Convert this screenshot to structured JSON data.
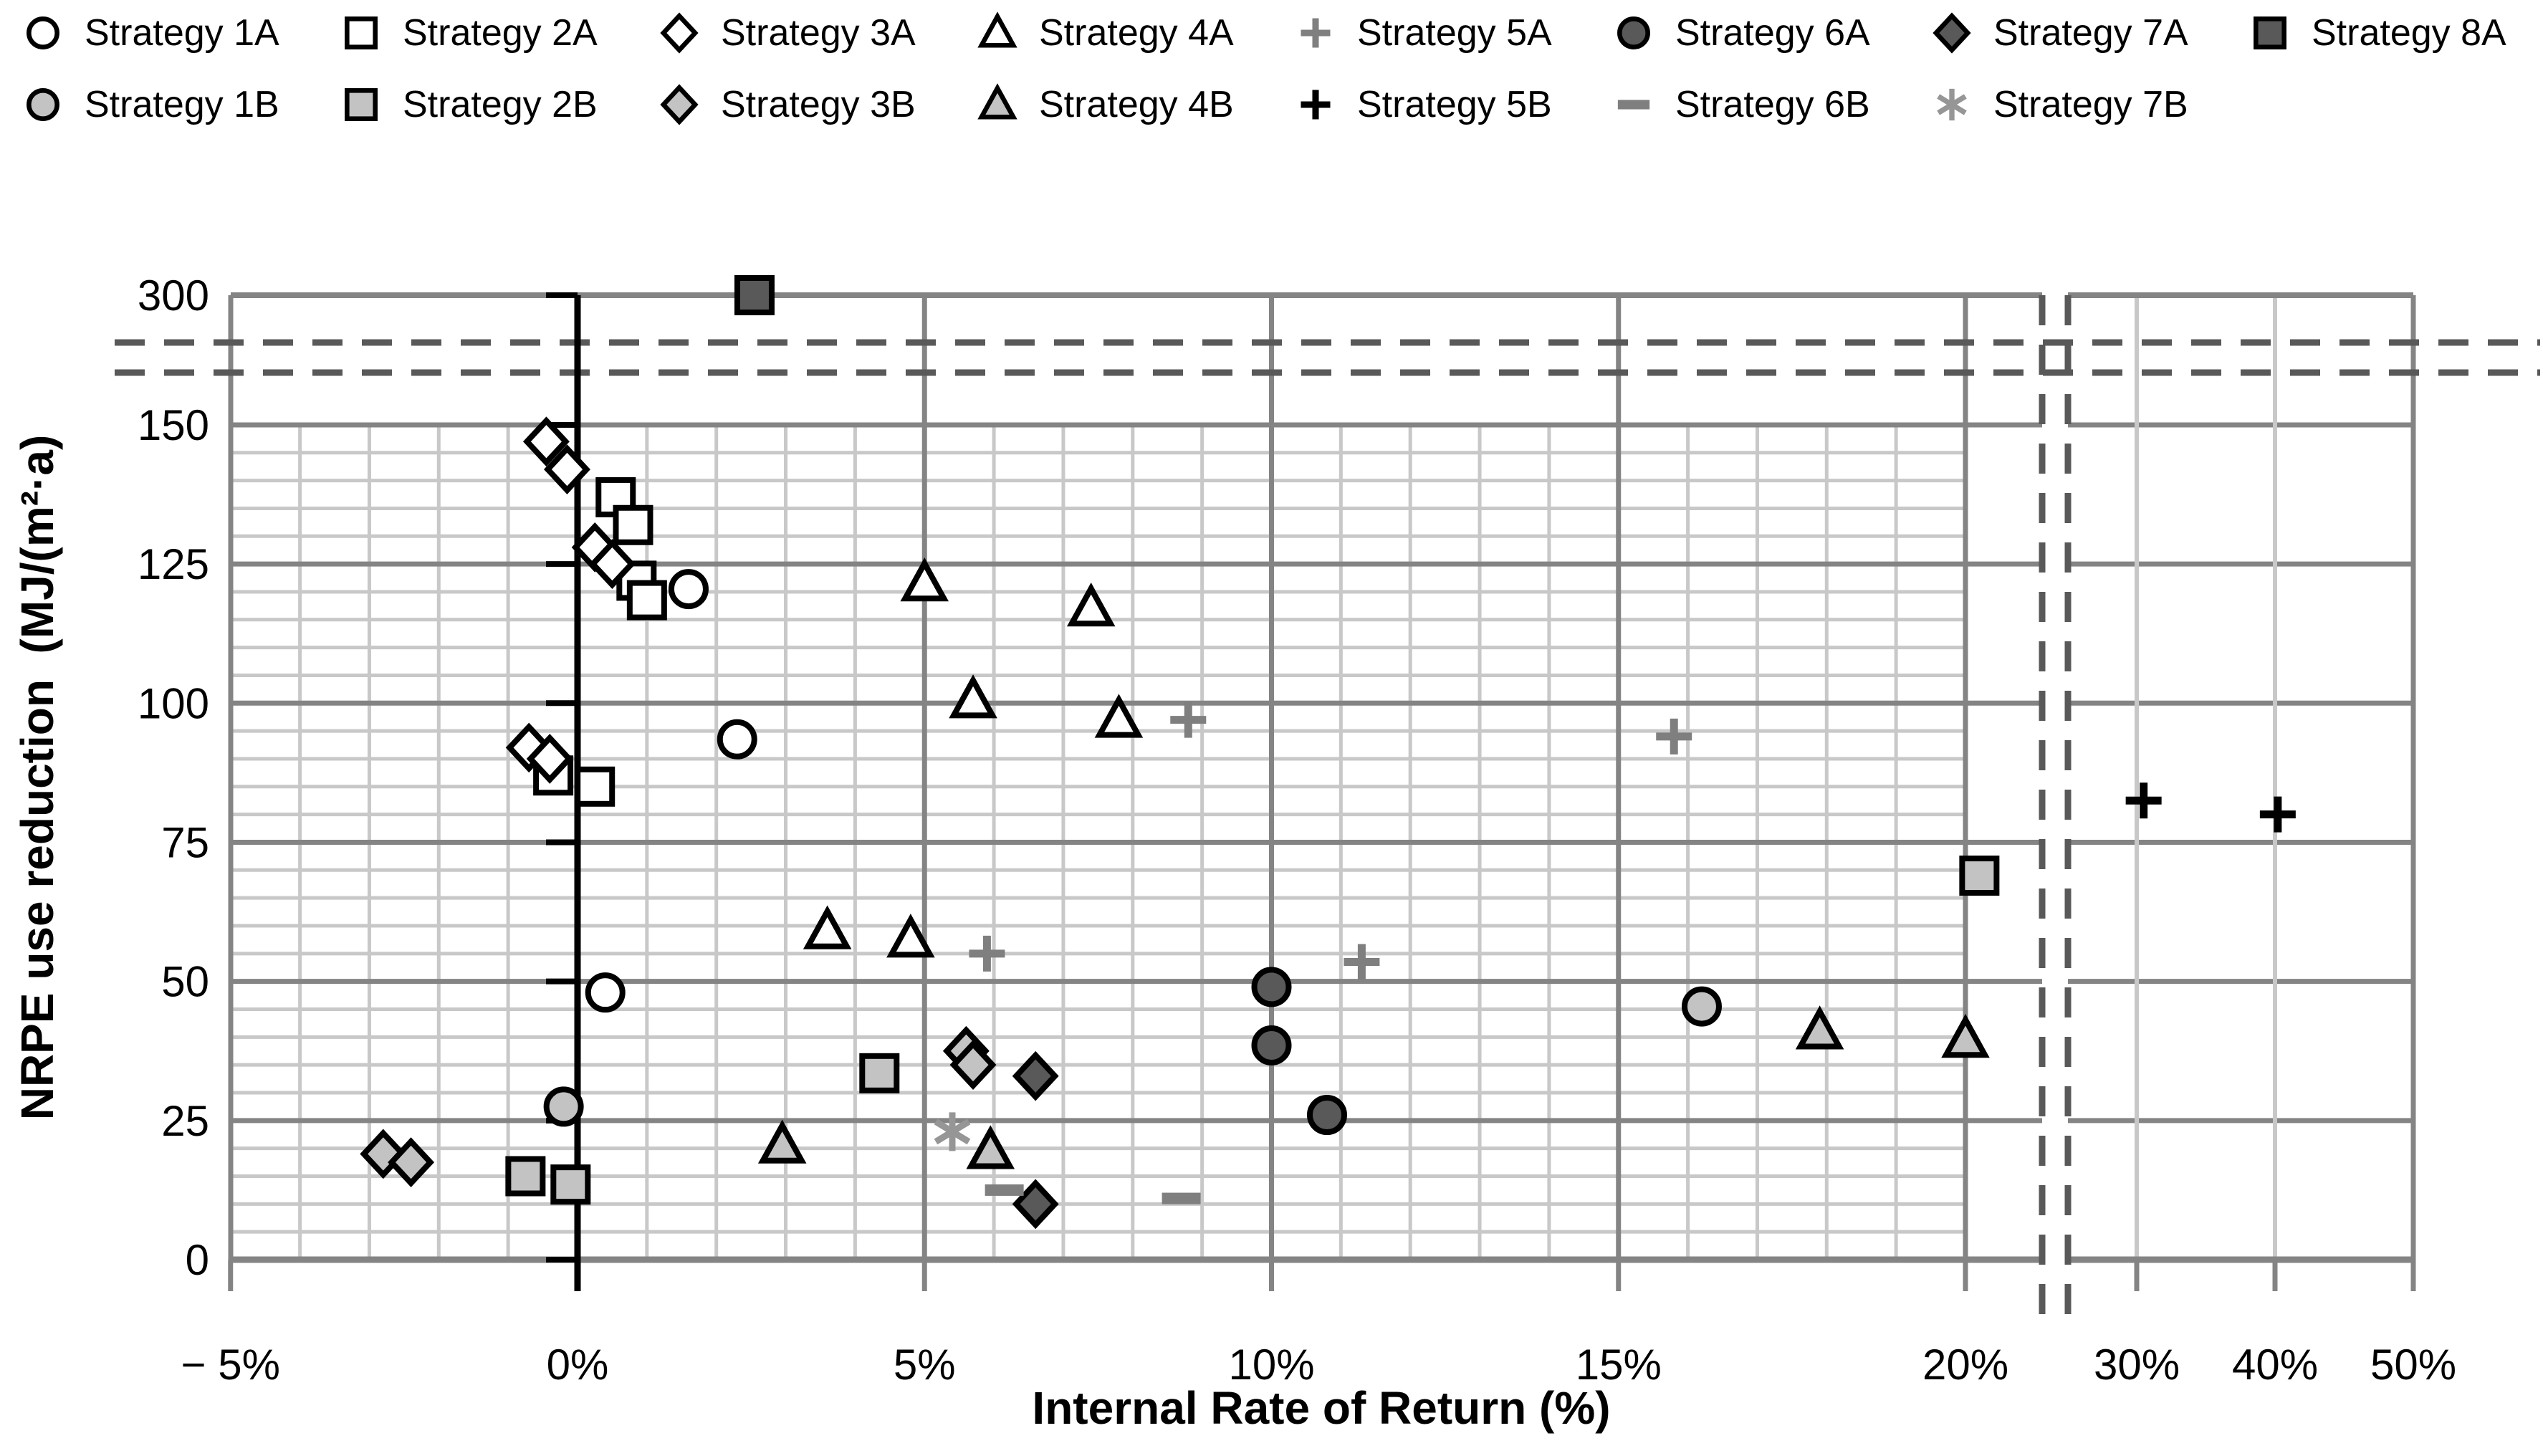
{
  "figure_title": "",
  "colors": {
    "background": "#ffffff",
    "text": "#000000",
    "grid_major": "#848484",
    "grid_minor": "#c8c8c8",
    "plot_border": "#848484",
    "value_axis": "#000000",
    "break_dash": "#595959",
    "open_fill": "#ffffff",
    "light_fill": "#c3c3c3",
    "dark_fill": "#595959",
    "gray_marker": "#7f7f7f",
    "asterisk_gray": "#969696",
    "marker_stroke": "#000000"
  },
  "chart_data": {
    "type": "scatter",
    "title": "",
    "xlabel": "Internal Rate of Return (%)",
    "ylabel": "NRPE use reduction  (MJ/(m²·a)",
    "grid": "on",
    "legend_position": "top",
    "x_axis": {
      "unit": "%",
      "xlim_main": [
        -5,
        21.1
      ],
      "xlim_right": [
        27.3,
        50
      ],
      "minor_step": 1,
      "break_between": [
        20,
        30
      ],
      "main_ticks": [
        {
          "v": -5,
          "label": "− 5%"
        },
        {
          "v": 0,
          "label": "0%"
        },
        {
          "v": 5,
          "label": "5%"
        },
        {
          "v": 10,
          "label": "10%"
        },
        {
          "v": 15,
          "label": "15%"
        },
        {
          "v": 20,
          "label": "20%"
        }
      ],
      "right_ticks": [
        {
          "v": 30,
          "label": "30%"
        },
        {
          "v": 40,
          "label": "40%"
        },
        {
          "v": 50,
          "label": "50%"
        }
      ]
    },
    "y_axis": {
      "ylim_main": [
        0,
        160
      ],
      "minor_step": 5,
      "major_step": 25,
      "break_between": [
        150,
        300
      ],
      "ticks": [
        {
          "v": 0,
          "label": "0"
        },
        {
          "v": 25,
          "label": "25"
        },
        {
          "v": 50,
          "label": "50"
        },
        {
          "v": 75,
          "label": "75"
        },
        {
          "v": 100,
          "label": "100"
        },
        {
          "v": 125,
          "label": "125"
        },
        {
          "v": 150,
          "label": "150"
        },
        {
          "v": 300,
          "label": "300"
        }
      ]
    },
    "series": [
      {
        "id": "1A",
        "name": "Strategy 1A",
        "marker": "circle",
        "fill": "#ffffff",
        "stroke": "#000000",
        "points": [
          [
            1.6,
            120.5
          ],
          [
            2.3,
            93.5
          ],
          [
            0.4,
            48
          ]
        ]
      },
      {
        "id": "2A",
        "name": "Strategy 2A",
        "marker": "square",
        "fill": "#ffffff",
        "stroke": "#000000",
        "points": [
          [
            0.55,
            137
          ],
          [
            0.8,
            132
          ],
          [
            0.85,
            122
          ],
          [
            1.0,
            118.5
          ],
          [
            -0.35,
            87
          ],
          [
            0.25,
            85
          ]
        ]
      },
      {
        "id": "3A",
        "name": "Strategy 3A",
        "marker": "diamond",
        "fill": "#ffffff",
        "stroke": "#000000",
        "points": [
          [
            -0.45,
            147
          ],
          [
            -0.15,
            142
          ],
          [
            0.25,
            128
          ],
          [
            0.5,
            125
          ],
          [
            -0.7,
            92
          ],
          [
            -0.4,
            90
          ]
        ]
      },
      {
        "id": "4A",
        "name": "Strategy 4A",
        "marker": "triangle",
        "fill": "#ffffff",
        "stroke": "#000000",
        "points": [
          [
            5.0,
            121.5
          ],
          [
            7.4,
            117
          ],
          [
            5.7,
            100.5
          ],
          [
            7.8,
            97
          ],
          [
            3.6,
            59
          ],
          [
            4.8,
            57.5
          ]
        ]
      },
      {
        "id": "5A",
        "name": "Strategy 5A",
        "marker": "plus",
        "fill": "#7f7f7f",
        "stroke": "#7f7f7f",
        "points": [
          [
            8.8,
            97
          ],
          [
            15.8,
            94
          ],
          [
            5.9,
            55
          ],
          [
            11.3,
            53.5
          ]
        ]
      },
      {
        "id": "6A",
        "name": "Strategy 6A",
        "marker": "circle",
        "fill": "#595959",
        "stroke": "#000000",
        "points": [
          [
            10.0,
            49
          ],
          [
            10.0,
            38.5
          ],
          [
            10.8,
            26
          ]
        ]
      },
      {
        "id": "7A",
        "name": "Strategy 7A",
        "marker": "diamond",
        "fill": "#595959",
        "stroke": "#000000",
        "points": [
          [
            6.6,
            33
          ],
          [
            6.6,
            10
          ]
        ]
      },
      {
        "id": "8A",
        "name": "Strategy 8A",
        "marker": "square",
        "fill": "#595959",
        "stroke": "#000000",
        "points": [
          [
            2.55,
            300
          ]
        ]
      },
      {
        "id": "1B",
        "name": "Strategy 1B",
        "marker": "circle",
        "fill": "#c3c3c3",
        "stroke": "#000000",
        "points": [
          [
            -0.2,
            27.5
          ],
          [
            16.2,
            45.5
          ]
        ]
      },
      {
        "id": "2B",
        "name": "Strategy 2B",
        "marker": "square",
        "fill": "#c3c3c3",
        "stroke": "#000000",
        "points": [
          [
            -0.75,
            15
          ],
          [
            -0.1,
            13.5
          ],
          [
            4.35,
            33.5
          ],
          [
            20.2,
            69
          ]
        ]
      },
      {
        "id": "3B",
        "name": "Strategy 3B",
        "marker": "diamond",
        "fill": "#c3c3c3",
        "stroke": "#000000",
        "points": [
          [
            -2.8,
            19
          ],
          [
            -2.4,
            17.5
          ],
          [
            5.6,
            37.5
          ],
          [
            5.7,
            35
          ]
        ]
      },
      {
        "id": "4B",
        "name": "Strategy 4B",
        "marker": "triangle",
        "fill": "#c3c3c3",
        "stroke": "#000000",
        "points": [
          [
            2.95,
            20.5
          ],
          [
            5.95,
            19.5
          ],
          [
            17.9,
            41
          ],
          [
            20.0,
            39.5
          ]
        ]
      },
      {
        "id": "5B",
        "name": "Strategy 5B",
        "marker": "plus",
        "fill": "#000000",
        "stroke": "#000000",
        "points": [
          [
            30.5,
            82.5
          ],
          [
            40.2,
            80
          ]
        ]
      },
      {
        "id": "6B",
        "name": "Strategy 6B",
        "marker": "dash",
        "fill": "#7f7f7f",
        "stroke": "#7f7f7f",
        "points": [
          [
            6.15,
            12.5
          ],
          [
            8.7,
            11
          ]
        ]
      },
      {
        "id": "7B",
        "name": "Strategy 7B",
        "marker": "asterisk",
        "fill": "#969696",
        "stroke": "#969696",
        "points": [
          [
            5.4,
            23
          ]
        ]
      }
    ],
    "legend_rows": [
      [
        0,
        1,
        2,
        3,
        4,
        5,
        6,
        7
      ],
      [
        8,
        9,
        10,
        11,
        12,
        13,
        14
      ]
    ]
  }
}
